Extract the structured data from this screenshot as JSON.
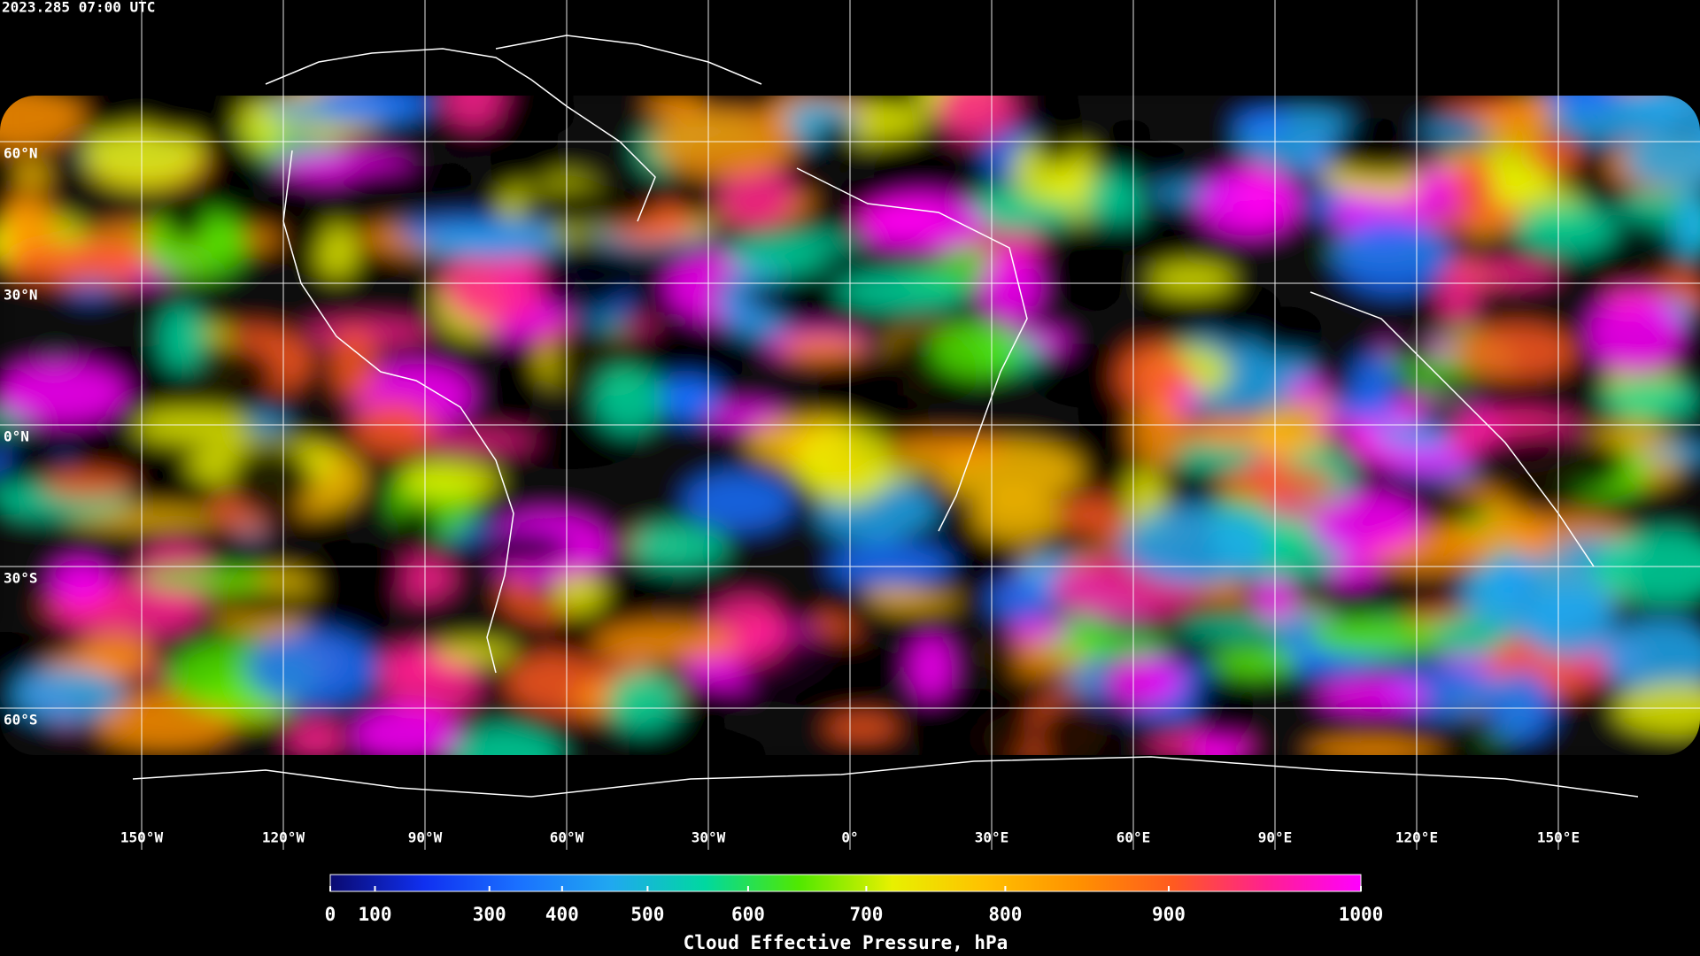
{
  "chart_data": {
    "type": "map",
    "title": "2023.285 07:00 UTC",
    "xlim": [
      -180,
      180
    ],
    "ylim": [
      -90,
      90
    ],
    "xticks": [
      {
        "value": -150,
        "label": "150°W"
      },
      {
        "value": -120,
        "label": "120°W"
      },
      {
        "value": -90,
        "label": "90°W"
      },
      {
        "value": -60,
        "label": "60°W"
      },
      {
        "value": -30,
        "label": "30°W"
      },
      {
        "value": 0,
        "label": "0°"
      },
      {
        "value": 30,
        "label": "30°E"
      },
      {
        "value": 60,
        "label": "60°E"
      },
      {
        "value": 90,
        "label": "90°E"
      },
      {
        "value": 120,
        "label": "120°E"
      },
      {
        "value": 150,
        "label": "150°E"
      }
    ],
    "yticks": [
      {
        "value": 60,
        "label": "60°N"
      },
      {
        "value": 30,
        "label": "30°N"
      },
      {
        "value": 0,
        "label": "0°N"
      },
      {
        "value": -30,
        "label": "30°S"
      },
      {
        "value": -60,
        "label": "60°S"
      }
    ],
    "grid": true,
    "colorbar": {
      "label": "Cloud Effective Pressure, hPa",
      "lim": [
        0,
        1000
      ],
      "ticks": [
        0,
        100,
        300,
        400,
        500,
        600,
        700,
        800,
        900,
        1000
      ],
      "scale": "exponential",
      "colors": [
        "#0a0a70",
        "#1030f0",
        "#1a70ff",
        "#20a8f0",
        "#00d8a0",
        "#50e800",
        "#e8f000",
        "#ffc000",
        "#ff9000",
        "#ff5a20",
        "#ff2090",
        "#ff00ff"
      ]
    }
  }
}
